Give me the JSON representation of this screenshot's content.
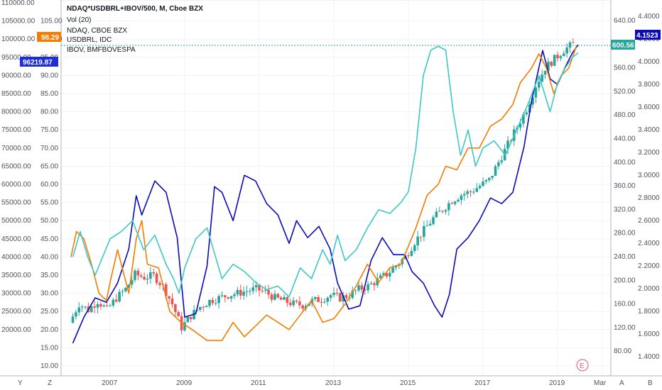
{
  "legend": {
    "main": "NDAQ*USDBRL+IBOV/500, M, Cboe BZX",
    "vol": "Vol (20)",
    "ndaq": "NDAQ, CBOE BZX",
    "usdbrl": "USDBRL, IDC",
    "ibov": "IBOV, BMFBOVESPA"
  },
  "corner_buttons": {
    "y": "Y",
    "z": "Z",
    "a": "A",
    "b": "B"
  },
  "event_marker": "E",
  "colors": {
    "main_up": "#26a69a",
    "main_down": "#ef5350",
    "ndaq": "#f57c00",
    "usdbrl": "#0b0bb5",
    "ibov": "#3dc8c8",
    "ibov_badge": "#1e2fd6",
    "ndaq_badge": "#f57c00",
    "grid": "#f0f3fa"
  },
  "chart_data": {
    "type": "candlestick-overlay",
    "x_axis": {
      "ticks": [
        "2007",
        "2009",
        "2011",
        "2013",
        "2015",
        "2017",
        "2019",
        "Mar"
      ]
    },
    "axis_ibov": {
      "range": [
        10000,
        110000
      ],
      "ticks": [
        "110000.00",
        "105000.00",
        "100000.00",
        "95000.00",
        "90000.00",
        "85000.00",
        "80000.00",
        "75000.00",
        "70000.00",
        "65000.00",
        "60000.00",
        "55000.00",
        "50000.00",
        "45000.00",
        "40000.00",
        "35000.00",
        "30000.00",
        "25000.00",
        "20000.00"
      ],
      "last_value_label": "96219.87"
    },
    "axis_ndaq": {
      "range": [
        10,
        110
      ],
      "ticks": [
        "105.00",
        "100.00",
        "95.00",
        "90.00",
        "85.00",
        "80.00",
        "75.00",
        "70.00",
        "65.00",
        "60.00",
        "55.00",
        "50.00",
        "45.00",
        "40.00",
        "35.00",
        "30.00",
        "25.00",
        "20.00",
        "15.00",
        "10.00"
      ],
      "last_value_label": "98.29"
    },
    "axis_main": {
      "range": [
        55,
        670
      ],
      "ticks": [
        "640.00",
        "600.00",
        "560.00",
        "520.00",
        "480.00",
        "440.00",
        "400.00",
        "360.00",
        "320.00",
        "280.00",
        "240.00",
        "200.00",
        "160.00",
        "120.00",
        "80.00"
      ],
      "last_value_label": "600.56"
    },
    "axis_usdbrl": {
      "range": [
        1.32,
        4.52
      ],
      "ticks": [
        "4.4000",
        "4.2000",
        "4.0000",
        "3.8000",
        "3.6000",
        "3.4000",
        "3.2000",
        "3.0000",
        "2.8000",
        "2.6000",
        "2.4000",
        "2.2000",
        "2.0000",
        "1.8000",
        "1.6000",
        "1.4000"
      ],
      "last_value_label": "4.1523"
    },
    "series": [
      {
        "name": "NDAQ*USDBRL+IBOV/500, M, Cboe BZX",
        "kind": "candles",
        "points": [
          [
            2006.0,
            128
          ],
          [
            2006.25,
            160
          ],
          [
            2006.5,
            150
          ],
          [
            2006.75,
            165
          ],
          [
            2007.0,
            150
          ],
          [
            2007.25,
            170
          ],
          [
            2007.5,
            185
          ],
          [
            2007.75,
            210
          ],
          [
            2008.0,
            205
          ],
          [
            2008.25,
            208
          ],
          [
            2008.5,
            190
          ],
          [
            2008.75,
            160
          ],
          [
            2009.0,
            120
          ],
          [
            2009.25,
            140
          ],
          [
            2009.5,
            155
          ],
          [
            2009.75,
            165
          ],
          [
            2010.0,
            170
          ],
          [
            2010.25,
            175
          ],
          [
            2010.5,
            178
          ],
          [
            2010.75,
            182
          ],
          [
            2011.0,
            185
          ],
          [
            2011.25,
            180
          ],
          [
            2011.5,
            170
          ],
          [
            2011.75,
            165
          ],
          [
            2012.0,
            160
          ],
          [
            2012.25,
            158
          ],
          [
            2012.5,
            165
          ],
          [
            2012.75,
            168
          ],
          [
            2013.0,
            175
          ],
          [
            2013.25,
            170
          ],
          [
            2013.5,
            175
          ],
          [
            2013.75,
            185
          ],
          [
            2014.0,
            190
          ],
          [
            2014.25,
            200
          ],
          [
            2014.5,
            210
          ],
          [
            2014.75,
            225
          ],
          [
            2015.0,
            240
          ],
          [
            2015.25,
            265
          ],
          [
            2015.5,
            285
          ],
          [
            2015.75,
            305
          ],
          [
            2016.0,
            320
          ],
          [
            2016.25,
            335
          ],
          [
            2016.5,
            345
          ],
          [
            2016.75,
            350
          ],
          [
            2017.0,
            360
          ],
          [
            2017.25,
            370
          ],
          [
            2017.5,
            400
          ],
          [
            2017.75,
            430
          ],
          [
            2018.0,
            460
          ],
          [
            2018.25,
            490
          ],
          [
            2018.5,
            530
          ],
          [
            2018.75,
            560
          ],
          [
            2019.0,
            575
          ],
          [
            2019.25,
            590
          ],
          [
            2019.5,
            600
          ]
        ]
      },
      {
        "name": "NDAQ, CBOE BZX",
        "kind": "line",
        "points": [
          [
            2005.95,
            40
          ],
          [
            2006.1,
            47
          ],
          [
            2006.3,
            45
          ],
          [
            2006.5,
            38
          ],
          [
            2006.7,
            30
          ],
          [
            2006.9,
            28
          ],
          [
            2007.0,
            33
          ],
          [
            2007.2,
            42
          ],
          [
            2007.5,
            30
          ],
          [
            2007.7,
            45
          ],
          [
            2007.85,
            50
          ],
          [
            2008.0,
            38
          ],
          [
            2008.3,
            37
          ],
          [
            2008.6,
            25
          ],
          [
            2008.9,
            22
          ],
          [
            2009.2,
            20
          ],
          [
            2009.6,
            17
          ],
          [
            2010.0,
            17
          ],
          [
            2010.3,
            22
          ],
          [
            2010.6,
            18
          ],
          [
            2010.9,
            21
          ],
          [
            2011.2,
            24
          ],
          [
            2011.5,
            22
          ],
          [
            2011.8,
            20
          ],
          [
            2012.1,
            24
          ],
          [
            2012.4,
            28
          ],
          [
            2012.7,
            22
          ],
          [
            2013.0,
            23
          ],
          [
            2013.3,
            27
          ],
          [
            2013.6,
            32
          ],
          [
            2013.9,
            38
          ],
          [
            2014.2,
            33
          ],
          [
            2014.5,
            37
          ],
          [
            2014.8,
            38
          ],
          [
            2015.2,
            48
          ],
          [
            2015.5,
            57
          ],
          [
            2015.8,
            60
          ],
          [
            2016.0,
            65
          ],
          [
            2016.3,
            64
          ],
          [
            2016.6,
            70
          ],
          [
            2016.9,
            70
          ],
          [
            2017.2,
            76
          ],
          [
            2017.5,
            78
          ],
          [
            2017.8,
            82
          ],
          [
            2018.0,
            88
          ],
          [
            2018.3,
            92
          ],
          [
            2018.5,
            96
          ],
          [
            2018.7,
            92
          ],
          [
            2018.9,
            85
          ],
          [
            2019.1,
            90
          ],
          [
            2019.3,
            92
          ],
          [
            2019.5,
            98
          ]
        ]
      },
      {
        "name": "USDBRL, IDC",
        "kind": "line",
        "points": [
          [
            2006.0,
            1.52
          ],
          [
            2006.3,
            1.75
          ],
          [
            2006.6,
            1.92
          ],
          [
            2006.9,
            1.88
          ],
          [
            2007.2,
            2.05
          ],
          [
            2007.5,
            2.35
          ],
          [
            2007.7,
            2.82
          ],
          [
            2007.85,
            2.65
          ],
          [
            2008.0,
            2.78
          ],
          [
            2008.2,
            2.95
          ],
          [
            2008.5,
            2.85
          ],
          [
            2008.8,
            2.45
          ],
          [
            2009.0,
            1.75
          ],
          [
            2009.3,
            1.78
          ],
          [
            2009.6,
            2.2
          ],
          [
            2009.8,
            2.9
          ],
          [
            2010.0,
            2.85
          ],
          [
            2010.3,
            2.6
          ],
          [
            2010.6,
            3.0
          ],
          [
            2010.9,
            2.95
          ],
          [
            2011.2,
            2.75
          ],
          [
            2011.5,
            2.65
          ],
          [
            2011.8,
            2.4
          ],
          [
            2012.0,
            2.6
          ],
          [
            2012.3,
            2.45
          ],
          [
            2012.6,
            2.55
          ],
          [
            2012.9,
            2.35
          ],
          [
            2013.1,
            2.05
          ],
          [
            2013.4,
            1.82
          ],
          [
            2013.7,
            1.85
          ],
          [
            2014.0,
            2.25
          ],
          [
            2014.3,
            2.45
          ],
          [
            2014.6,
            2.3
          ],
          [
            2014.9,
            2.3
          ],
          [
            2015.1,
            2.15
          ],
          [
            2015.4,
            2.05
          ],
          [
            2015.7,
            1.85
          ],
          [
            2015.9,
            1.75
          ],
          [
            2016.1,
            1.95
          ],
          [
            2016.3,
            2.35
          ],
          [
            2016.6,
            2.45
          ],
          [
            2016.9,
            2.6
          ],
          [
            2017.2,
            2.8
          ],
          [
            2017.5,
            2.75
          ],
          [
            2017.8,
            2.85
          ],
          [
            2018.1,
            3.25
          ],
          [
            2018.3,
            3.65
          ],
          [
            2018.6,
            4.1
          ],
          [
            2018.8,
            3.85
          ],
          [
            2019.0,
            3.8
          ],
          [
            2019.2,
            3.95
          ],
          [
            2019.4,
            4.08
          ],
          [
            2019.55,
            4.15
          ]
        ]
      },
      {
        "name": "IBOV, BMFBOVESPA",
        "kind": "line",
        "points": [
          [
            2006.0,
            40000
          ],
          [
            2006.2,
            47000
          ],
          [
            2006.4,
            40000
          ],
          [
            2006.6,
            35000
          ],
          [
            2006.8,
            40000
          ],
          [
            2007.0,
            45000
          ],
          [
            2007.3,
            47000
          ],
          [
            2007.6,
            50000
          ],
          [
            2007.9,
            42000
          ],
          [
            2008.2,
            46000
          ],
          [
            2008.5,
            38000
          ],
          [
            2008.7,
            34000
          ],
          [
            2008.85,
            30000
          ],
          [
            2009.0,
            37000
          ],
          [
            2009.3,
            45000
          ],
          [
            2009.6,
            48000
          ],
          [
            2009.8,
            41000
          ],
          [
            2010.0,
            34000
          ],
          [
            2010.3,
            38000
          ],
          [
            2010.6,
            36000
          ],
          [
            2010.9,
            33000
          ],
          [
            2011.2,
            31000
          ],
          [
            2011.5,
            32000
          ],
          [
            2011.8,
            29000
          ],
          [
            2012.1,
            37000
          ],
          [
            2012.4,
            34000
          ],
          [
            2012.7,
            42000
          ],
          [
            2012.9,
            38000
          ],
          [
            2013.1,
            46000
          ],
          [
            2013.3,
            39000
          ],
          [
            2013.6,
            42000
          ],
          [
            2013.9,
            48000
          ],
          [
            2014.2,
            53000
          ],
          [
            2014.5,
            52000
          ],
          [
            2014.8,
            55000
          ],
          [
            2015.0,
            58000
          ],
          [
            2015.2,
            70000
          ],
          [
            2015.4,
            90000
          ],
          [
            2015.6,
            97000
          ],
          [
            2015.8,
            98000
          ],
          [
            2016.0,
            97000
          ],
          [
            2016.2,
            80000
          ],
          [
            2016.4,
            68000
          ],
          [
            2016.6,
            75000
          ],
          [
            2016.8,
            65000
          ],
          [
            2017.0,
            70000
          ],
          [
            2017.3,
            72000
          ],
          [
            2017.6,
            68000
          ],
          [
            2017.9,
            75000
          ],
          [
            2018.2,
            82000
          ],
          [
            2018.5,
            90000
          ],
          [
            2018.8,
            80000
          ],
          [
            2019.0,
            88000
          ],
          [
            2019.2,
            92000
          ],
          [
            2019.4,
            95000
          ],
          [
            2019.55,
            96219.87
          ]
        ]
      }
    ]
  }
}
